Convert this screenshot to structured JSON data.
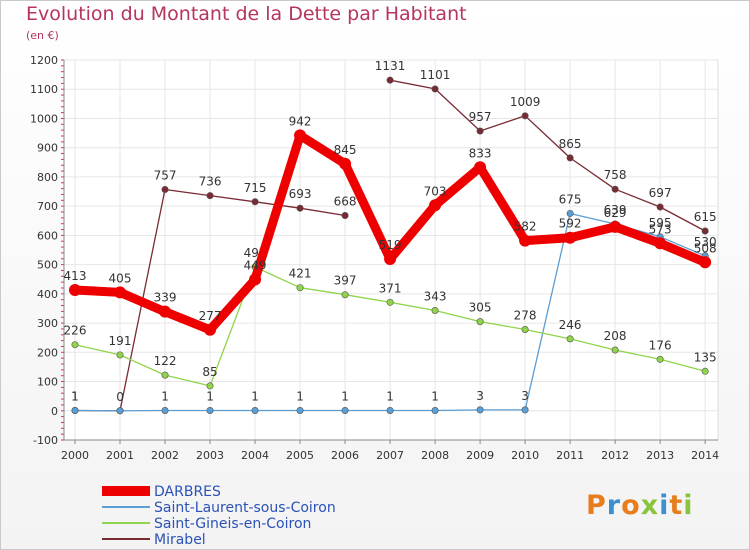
{
  "header": {
    "title": "Evolution du Montant de la Dette par Habitant",
    "subtitle": "(en €)"
  },
  "logo": {
    "text": "Proxiti",
    "colors": [
      "#e87d1e",
      "#3c8fd1",
      "#e87d1e",
      "#8ac43f",
      "#3c8fd1",
      "#e87d1e",
      "#8ac43f"
    ]
  },
  "chart_data": {
    "type": "line",
    "title": "Evolution du Montant de la Dette par Habitant",
    "ylabel": "(en €)",
    "xlabel": "",
    "ylim": [
      -100,
      1200
    ],
    "y_ticks": [
      -100,
      0,
      100,
      200,
      300,
      400,
      500,
      600,
      700,
      800,
      900,
      1000,
      1100,
      1200
    ],
    "categories": [
      "2000",
      "2001",
      "2002",
      "2003",
      "2004",
      "2005",
      "2006",
      "2007",
      "2008",
      "2009",
      "2010",
      "2011",
      "2012",
      "2013",
      "2014"
    ],
    "grid": true,
    "legend_position": "bottom-left",
    "series": [
      {
        "name": "Mirabel",
        "color": "#7a2a32",
        "segments": [
          [
            0,
            6,
            [
              1,
              0,
              757,
              736,
              715,
              693,
              668
            ]
          ],
          [
            7,
            14,
            [
              1131,
              1101,
              957,
              1009,
              865,
              758,
              697,
              615
            ]
          ]
        ]
      },
      {
        "name": "Saint-Laurent-sous-Coiron",
        "color": "#5a9ed4",
        "values": [
          1,
          0,
          1,
          1,
          1,
          1,
          1,
          1,
          1,
          3,
          3,
          675,
          639,
          595,
          530
        ]
      },
      {
        "name": "Saint-Gineis-en-Coiron",
        "color": "#8fd44a",
        "values": [
          226,
          191,
          122,
          85,
          492,
          421,
          397,
          371,
          343,
          305,
          278,
          246,
          208,
          176,
          135
        ]
      },
      {
        "name": "DARBRES",
        "color": "#ee0000",
        "values": [
          413,
          405,
          339,
          277,
          449,
          942,
          845,
          519,
          703,
          833,
          582,
          592,
          629,
          573,
          508
        ]
      }
    ],
    "labels": {
      "Mirabel": [
        "1",
        "0",
        "757",
        "736",
        "715",
        "693",
        "668",
        "1131",
        "1101",
        "957",
        "1009",
        "865",
        "758",
        "697",
        "615"
      ],
      "Saint-Laurent-sous-Coiron": [
        "1",
        "",
        "1",
        "1",
        "1",
        "1",
        "1",
        "1",
        "1",
        "3",
        "3",
        "675",
        "639",
        "595",
        "530"
      ],
      "Saint-Gineis-en-Coiron": [
        "226",
        "191",
        "122",
        "85",
        "492",
        "421",
        "397",
        "371",
        "343",
        "305",
        "278",
        "246",
        "208",
        "176",
        "135"
      ],
      "DARBRES": [
        "413",
        "405",
        "339",
        "277",
        "449",
        "942",
        "845",
        "519",
        "703",
        "833",
        "582",
        "592",
        "629",
        "573",
        "508"
      ]
    }
  },
  "legend": {
    "items": [
      {
        "name": "DARBRES",
        "color": "#ee0000"
      },
      {
        "name": "Saint-Laurent-sous-Coiron",
        "color": "#5a9ed4"
      },
      {
        "name": "Saint-Gineis-en-Coiron",
        "color": "#8fd44a"
      },
      {
        "name": "Mirabel",
        "color": "#7a2a32"
      }
    ]
  }
}
